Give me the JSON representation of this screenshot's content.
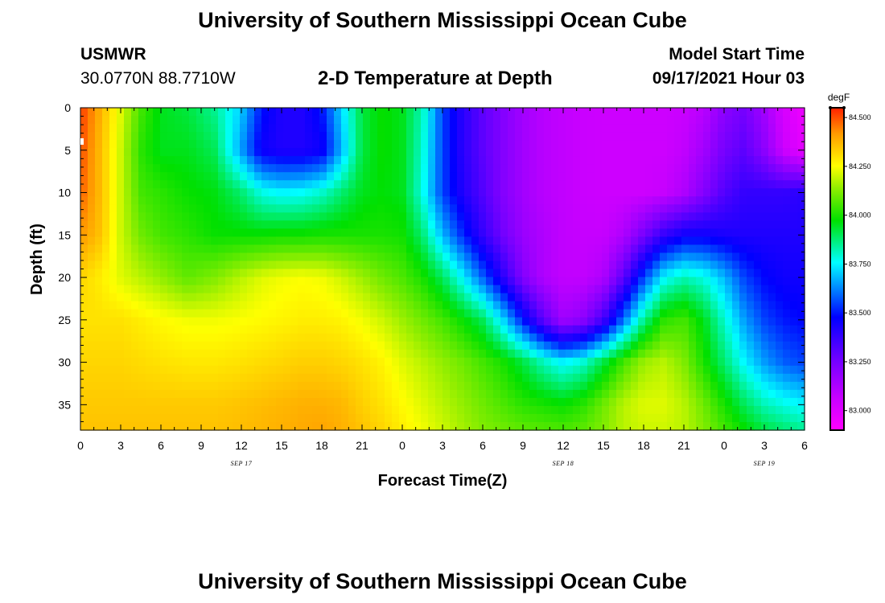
{
  "header": {
    "title": "University of Southern Mississippi Ocean Cube",
    "station_name": "USMWR",
    "station_coords": "30.0770N  88.7710W",
    "plot_title": "2-D Temperature at Depth",
    "model_label": "Model Start Time",
    "model_time": "09/17/2021 Hour 03"
  },
  "footer": {
    "title": "University of Southern Mississippi Ocean Cube"
  },
  "chart_data": {
    "type": "heatmap",
    "title": "2-D Temperature at Depth",
    "xlabel": "Forecast Time(Z)",
    "ylabel": "Depth (ft)",
    "x_range_hours": [
      0,
      54
    ],
    "y_range": [
      0,
      38
    ],
    "y_reversed": true,
    "x_ticks": [
      {
        "h": 0,
        "label": "0"
      },
      {
        "h": 3,
        "label": "3"
      },
      {
        "h": 6,
        "label": "6"
      },
      {
        "h": 9,
        "label": "9"
      },
      {
        "h": 12,
        "label": "12"
      },
      {
        "h": 15,
        "label": "15"
      },
      {
        "h": 18,
        "label": "18"
      },
      {
        "h": 21,
        "label": "21"
      },
      {
        "h": 24,
        "label": "0"
      },
      {
        "h": 27,
        "label": "3"
      },
      {
        "h": 30,
        "label": "6"
      },
      {
        "h": 33,
        "label": "9"
      },
      {
        "h": 36,
        "label": "12"
      },
      {
        "h": 39,
        "label": "15"
      },
      {
        "h": 42,
        "label": "18"
      },
      {
        "h": 45,
        "label": "21"
      },
      {
        "h": 48,
        "label": "0"
      },
      {
        "h": 51,
        "label": "3"
      },
      {
        "h": 54,
        "label": "6"
      }
    ],
    "y_ticks": [
      0,
      5,
      10,
      15,
      20,
      25,
      30,
      35
    ],
    "date_labels": [
      {
        "h": 12,
        "label": "SEP 17"
      },
      {
        "h": 36,
        "label": "SEP 18"
      },
      {
        "h": 51,
        "label": "SEP 19"
      }
    ],
    "colorbar": {
      "unit": "degF",
      "min": 82.9,
      "max": 84.55,
      "ticks": [
        "84.500",
        "84.250",
        "84.000",
        "83.750",
        "83.500",
        "83.250",
        "83.000"
      ],
      "tick_values": [
        84.5,
        84.25,
        84.0,
        83.75,
        83.5,
        83.25,
        83.0
      ],
      "colormap": "rainbow (magenta-blue-cyan-green-yellow-orange-red)"
    },
    "depths_ft": [
      0,
      5,
      10,
      15,
      20,
      25,
      30,
      35,
      38
    ],
    "hours": [
      0,
      1.5,
      3,
      4.5,
      6,
      8,
      10,
      12,
      13.5,
      15,
      16.5,
      18,
      19.5,
      21,
      22.5,
      24,
      25.5,
      27,
      28.5,
      30,
      31.5,
      33,
      34.5,
      36,
      37.5,
      39,
      40.5,
      42,
      43.5,
      45,
      46.5,
      48,
      49.5,
      51,
      52.5,
      54
    ],
    "values": [
      [
        84.52,
        84.38,
        84.22,
        84.05,
        83.95,
        83.92,
        83.85,
        83.7,
        83.5,
        83.42,
        83.42,
        83.5,
        83.72,
        83.92,
        83.98,
        83.95,
        83.82,
        83.55,
        83.4,
        83.3,
        83.22,
        83.15,
        83.1,
        83.08,
        83.06,
        83.05,
        83.05,
        83.05,
        83.05,
        83.06,
        83.1,
        83.2,
        83.25,
        83.15,
        83.02,
        82.95
      ],
      [
        84.5,
        84.36,
        84.2,
        84.02,
        83.95,
        83.95,
        83.9,
        83.65,
        83.45,
        83.42,
        83.42,
        83.45,
        83.68,
        83.92,
        83.98,
        83.95,
        83.8,
        83.55,
        83.4,
        83.3,
        83.22,
        83.15,
        83.1,
        83.08,
        83.06,
        83.05,
        83.05,
        83.05,
        83.05,
        83.08,
        83.15,
        83.25,
        83.3,
        83.2,
        83.05,
        82.98
      ],
      [
        84.48,
        84.36,
        84.2,
        84.05,
        84.02,
        83.98,
        83.96,
        83.88,
        83.78,
        83.75,
        83.76,
        83.8,
        83.88,
        83.95,
        83.97,
        83.95,
        83.78,
        83.55,
        83.42,
        83.32,
        83.22,
        83.15,
        83.1,
        83.08,
        83.06,
        83.05,
        83.05,
        83.05,
        83.07,
        83.12,
        83.22,
        83.32,
        83.38,
        83.38,
        83.38,
        83.4
      ],
      [
        84.42,
        84.35,
        84.2,
        84.1,
        84.05,
        84.02,
        83.98,
        83.98,
        83.98,
        83.99,
        83.99,
        84.0,
        84.0,
        84.0,
        84.0,
        83.99,
        83.88,
        83.68,
        83.52,
        83.38,
        83.26,
        83.17,
        83.12,
        83.08,
        83.07,
        83.07,
        83.12,
        83.25,
        83.38,
        83.45,
        83.45,
        83.43,
        83.42,
        83.42,
        83.42,
        83.42
      ],
      [
        84.32,
        84.28,
        84.22,
        84.18,
        84.14,
        84.08,
        84.12,
        84.18,
        84.22,
        84.24,
        84.25,
        84.24,
        84.2,
        84.15,
        84.1,
        84.06,
        84.0,
        83.9,
        83.75,
        83.58,
        83.4,
        83.22,
        83.12,
        83.08,
        83.08,
        83.12,
        83.3,
        83.55,
        83.75,
        83.82,
        83.78,
        83.68,
        83.55,
        83.48,
        83.45,
        83.45
      ],
      [
        84.3,
        84.3,
        84.3,
        84.28,
        84.26,
        84.24,
        84.24,
        84.25,
        84.26,
        84.27,
        84.28,
        84.28,
        84.27,
        84.24,
        84.2,
        84.15,
        84.1,
        84.05,
        83.98,
        83.9,
        83.72,
        83.5,
        83.3,
        83.15,
        83.2,
        83.35,
        83.6,
        83.85,
        84.02,
        84.05,
        83.95,
        83.8,
        83.65,
        83.55,
        83.5,
        83.48
      ],
      [
        84.32,
        84.32,
        84.32,
        84.31,
        84.3,
        84.29,
        84.29,
        84.3,
        84.31,
        84.32,
        84.33,
        84.33,
        84.32,
        84.3,
        84.27,
        84.22,
        84.18,
        84.14,
        84.1,
        84.05,
        84.0,
        83.92,
        83.82,
        83.75,
        83.8,
        83.92,
        84.05,
        84.15,
        84.18,
        84.12,
        84.0,
        83.88,
        83.75,
        83.65,
        83.58,
        83.55
      ],
      [
        84.34,
        84.34,
        84.34,
        84.34,
        84.34,
        84.34,
        84.34,
        84.35,
        84.36,
        84.37,
        84.38,
        84.38,
        84.37,
        84.33,
        84.3,
        84.26,
        84.22,
        84.18,
        84.14,
        84.1,
        84.06,
        84.02,
        84.0,
        83.98,
        84.02,
        84.1,
        84.18,
        84.22,
        84.22,
        84.18,
        84.1,
        84.0,
        83.9,
        83.82,
        83.78,
        83.75
      ],
      [
        84.35,
        84.35,
        84.35,
        84.35,
        84.35,
        84.35,
        84.35,
        84.36,
        84.37,
        84.38,
        84.39,
        84.4,
        84.38,
        84.35,
        84.32,
        84.28,
        84.24,
        84.2,
        84.16,
        84.12,
        84.1,
        84.08,
        84.07,
        84.06,
        84.08,
        84.12,
        84.18,
        84.2,
        84.2,
        84.18,
        84.12,
        84.05,
        83.98,
        83.92,
        83.88,
        83.85
      ]
    ]
  }
}
